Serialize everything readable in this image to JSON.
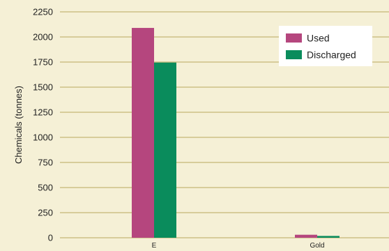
{
  "colors": {
    "background": "#f5f0d6",
    "grid": "#b9a95f",
    "used": "#b5467e",
    "discharged": "#0a8c5c",
    "legend_bg": "#ffffff"
  },
  "chart_data": {
    "type": "bar",
    "title": "",
    "xlabel": "",
    "ylabel": "Chemicals (tonnes)",
    "categories": [
      "E",
      "Gold"
    ],
    "series": [
      {
        "name": "Used",
        "values": [
          2090,
          30
        ]
      },
      {
        "name": "Discharged",
        "values": [
          1745,
          18
        ]
      }
    ],
    "ylim": [
      0,
      2250
    ],
    "yticks": [
      0,
      250,
      500,
      750,
      1000,
      1250,
      1500,
      1750,
      2000,
      2250
    ],
    "grid": true,
    "legend_position": "top-right"
  }
}
